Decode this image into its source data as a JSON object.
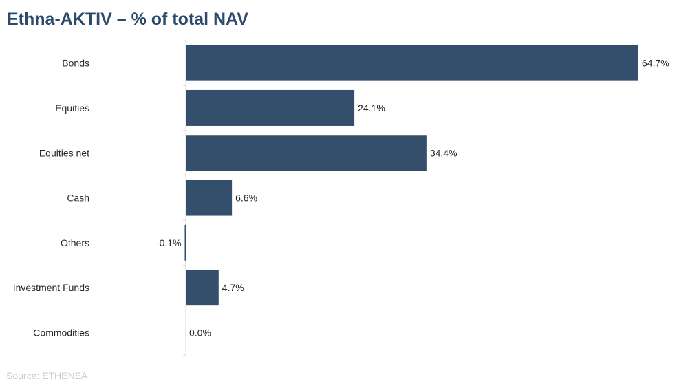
{
  "chart_data": {
    "type": "bar",
    "orientation": "horizontal",
    "title": "Ethna-AKTIV – % of total NAV",
    "categories": [
      "Bonds",
      "Equities",
      "Equities net",
      "Cash",
      "Others",
      "Investment Funds",
      "Commodities"
    ],
    "values": [
      64.7,
      24.1,
      34.4,
      6.6,
      -0.1,
      4.7,
      0.0
    ],
    "data_labels": [
      "64.7%",
      "24.1%",
      "34.4%",
      "6.6%",
      "-0.1%",
      "4.7%",
      "0.0%"
    ],
    "xlabel": "",
    "ylabel": "",
    "xlim": [
      0,
      64.7
    ],
    "grid": false,
    "legend": "none",
    "bar_color": "#344f6b",
    "axis_color": "#d9d9d9",
    "source": "Source: ETHENEA"
  }
}
